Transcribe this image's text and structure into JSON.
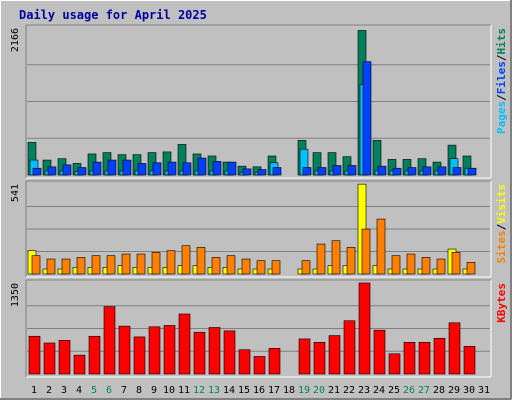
{
  "title": "Daily usage for April 2025",
  "chart_data": [
    {
      "type": "bar",
      "panel": "hits-files-pages",
      "ymax_label": "2166",
      "ymax": 2166,
      "legend": [
        "Pages",
        "/",
        "Files",
        "/",
        "Hits"
      ],
      "colors": {
        "hits": "#00805c",
        "files": "#0040ff",
        "pages": "#00c0ff",
        "sep": "#000000"
      },
      "categories": [
        "1",
        "2",
        "3",
        "4",
        "5",
        "6",
        "7",
        "8",
        "9",
        "10",
        "11",
        "12",
        "13",
        "14",
        "15",
        "16",
        "17",
        "18",
        "19",
        "20",
        "21",
        "22",
        "23",
        "24",
        "25",
        "26",
        "27",
        "28",
        "29",
        "30",
        "31"
      ],
      "series": [
        {
          "name": "Hits",
          "values": [
            480,
            220,
            240,
            170,
            310,
            330,
            300,
            300,
            330,
            340,
            450,
            310,
            280,
            190,
            130,
            120,
            280,
            0,
            510,
            330,
            330,
            270,
            2130,
            510,
            230,
            230,
            240,
            190,
            440,
            280,
            0
          ]
        },
        {
          "name": "Files",
          "values": [
            100,
            120,
            150,
            110,
            190,
            220,
            220,
            170,
            180,
            190,
            180,
            250,
            200,
            190,
            90,
            80,
            110,
            0,
            110,
            110,
            140,
            140,
            1670,
            130,
            100,
            110,
            120,
            120,
            110,
            100,
            0
          ]
        },
        {
          "name": "Pages",
          "values": [
            220,
            60,
            60,
            50,
            60,
            60,
            60,
            60,
            60,
            60,
            60,
            60,
            60,
            60,
            40,
            40,
            180,
            0,
            380,
            60,
            60,
            60,
            1330,
            60,
            60,
            60,
            60,
            60,
            240,
            100,
            0
          ]
        }
      ]
    },
    {
      "type": "bar",
      "panel": "visits-sites",
      "ymax_label": "541",
      "ymax": 541,
      "legend": [
        "Sites",
        "/",
        "Visits"
      ],
      "colors": {
        "visits": "#ffff00",
        "sites": "#ff8000",
        "sep": "#000000"
      },
      "categories": [
        "1",
        "2",
        "3",
        "4",
        "5",
        "6",
        "7",
        "8",
        "9",
        "10",
        "11",
        "12",
        "13",
        "14",
        "15",
        "16",
        "17",
        "18",
        "19",
        "20",
        "21",
        "22",
        "23",
        "24",
        "25",
        "26",
        "27",
        "28",
        "29",
        "30",
        "31"
      ],
      "series": [
        {
          "name": "Visits",
          "values": [
            140,
            30,
            30,
            40,
            40,
            40,
            50,
            40,
            40,
            40,
            50,
            50,
            40,
            40,
            30,
            30,
            30,
            0,
            30,
            30,
            50,
            50,
            540,
            50,
            30,
            30,
            30,
            30,
            150,
            30,
            0
          ]
        },
        {
          "name": "Sites",
          "values": [
            110,
            90,
            90,
            100,
            110,
            110,
            120,
            120,
            130,
            140,
            170,
            160,
            100,
            110,
            90,
            80,
            80,
            0,
            80,
            180,
            200,
            160,
            270,
            330,
            110,
            120,
            100,
            90,
            130,
            70,
            0
          ]
        }
      ]
    },
    {
      "type": "bar",
      "panel": "kbytes",
      "ymax_label": "1350",
      "ymax": 1350,
      "legend": [
        "KBytes"
      ],
      "colors": {
        "kbytes": "#ff0000"
      },
      "categories": [
        "1",
        "2",
        "3",
        "4",
        "5",
        "6",
        "7",
        "8",
        "9",
        "10",
        "11",
        "12",
        "13",
        "14",
        "15",
        "16",
        "17",
        "18",
        "19",
        "20",
        "21",
        "22",
        "23",
        "24",
        "25",
        "26",
        "27",
        "28",
        "29",
        "30",
        "31"
      ],
      "series": [
        {
          "name": "KBytes",
          "values": [
            560,
            460,
            500,
            280,
            560,
            1000,
            710,
            550,
            700,
            720,
            890,
            620,
            690,
            640,
            360,
            260,
            380,
            0,
            520,
            470,
            570,
            790,
            1350,
            650,
            300,
            470,
            470,
            530,
            760,
            410,
            0
          ]
        }
      ]
    }
  ],
  "day_label_colors": [
    "#000000",
    "#000000",
    "#000000",
    "#000000",
    "#008060",
    "#008060",
    "#000000",
    "#000000",
    "#000000",
    "#000000",
    "#000000",
    "#008060",
    "#008060",
    "#000000",
    "#000000",
    "#000000",
    "#000000",
    "#000000",
    "#008060",
    "#008060",
    "#000000",
    "#000000",
    "#000000",
    "#000000",
    "#000000",
    "#008060",
    "#008060",
    "#000000",
    "#000000",
    "#000000",
    "#000000"
  ]
}
